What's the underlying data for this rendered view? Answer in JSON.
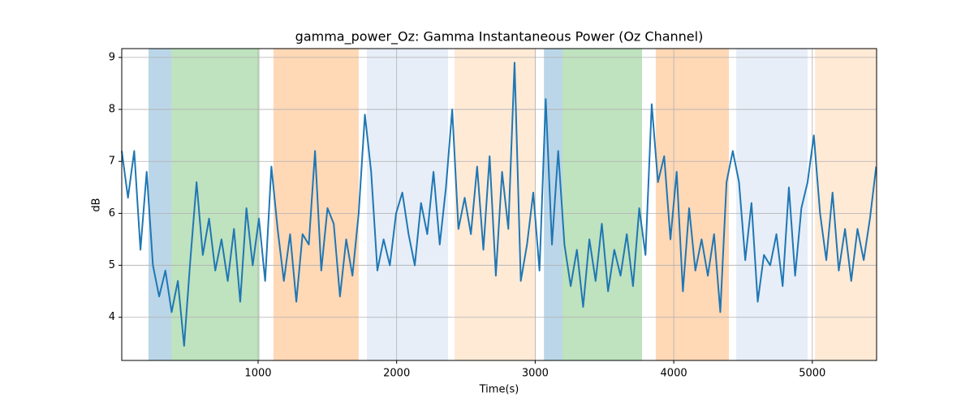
{
  "chart_data": {
    "type": "line",
    "title": "gamma_power_Oz: Gamma Instantaneous Power (Oz Channel)",
    "x_label": "Time(s)",
    "y_label": "dB",
    "xlim": [
      16,
      5464
    ],
    "ylim": [
      3.17,
      9.17
    ],
    "xticks": [
      1000,
      2000,
      3000,
      4000,
      5000
    ],
    "yticks": [
      4,
      5,
      6,
      7,
      8,
      9
    ],
    "grid": true,
    "span_opacity": 0.3,
    "spans": [
      {
        "start": 209,
        "end": 373,
        "color": "#1f77b4"
      },
      {
        "start": 373,
        "end": 1011,
        "color": "#2ca02c"
      },
      {
        "start": 1111,
        "end": 1726,
        "color": "#ff7f0e"
      },
      {
        "start": 1785,
        "end": 2371,
        "color": "#aec7e8"
      },
      {
        "start": 2418,
        "end": 3004,
        "color": "#ffbb78"
      },
      {
        "start": 3063,
        "end": 3197,
        "color": "#1f77b4"
      },
      {
        "start": 3197,
        "end": 3771,
        "color": "#2ca02c"
      },
      {
        "start": 3870,
        "end": 4398,
        "color": "#ff7f0e"
      },
      {
        "start": 4451,
        "end": 4966,
        "color": "#aec7e8"
      },
      {
        "start": 5019,
        "end": 5464,
        "color": "#ffbb78"
      }
    ],
    "x": [
      16,
      61,
      106,
      151,
      196,
      241,
      286,
      331,
      376,
      421,
      466,
      511,
      556,
      601,
      646,
      691,
      736,
      781,
      826,
      871,
      916,
      961,
      1006,
      1051,
      1096,
      1141,
      1186,
      1231,
      1276,
      1321,
      1366,
      1411,
      1456,
      1501,
      1546,
      1591,
      1636,
      1681,
      1726,
      1771,
      1816,
      1861,
      1906,
      1951,
      1996,
      2041,
      2086,
      2131,
      2176,
      2221,
      2266,
      2311,
      2356,
      2401,
      2446,
      2491,
      2536,
      2581,
      2626,
      2671,
      2716,
      2761,
      2806,
      2851,
      2896,
      2941,
      2986,
      3031,
      3076,
      3121,
      3166,
      3211,
      3256,
      3301,
      3346,
      3391,
      3436,
      3481,
      3526,
      3571,
      3616,
      3661,
      3706,
      3751,
      3796,
      3841,
      3886,
      3931,
      3976,
      4021,
      4066,
      4111,
      4156,
      4201,
      4246,
      4291,
      4336,
      4381,
      4426,
      4471,
      4516,
      4561,
      4606,
      4651,
      4696,
      4741,
      4786,
      4831,
      4876,
      4921,
      4966,
      5011,
      5056,
      5101,
      5146,
      5191,
      5236,
      5281,
      5326,
      5371,
      5416,
      5461
    ],
    "series": [
      {
        "color": "#1f77b4",
        "values": [
          7.2,
          6.3,
          7.2,
          5.3,
          6.8,
          5.0,
          4.4,
          4.9,
          4.1,
          4.7,
          3.45,
          5.1,
          6.6,
          5.2,
          5.9,
          4.9,
          5.5,
          4.7,
          5.7,
          4.3,
          6.1,
          5.0,
          5.9,
          4.7,
          6.9,
          5.7,
          4.7,
          5.6,
          4.3,
          5.6,
          5.4,
          7.2,
          4.9,
          6.1,
          5.8,
          4.4,
          5.5,
          4.8,
          6.0,
          7.9,
          6.8,
          4.9,
          5.5,
          5.0,
          6.0,
          6.4,
          5.6,
          5.0,
          6.2,
          5.6,
          6.8,
          5.4,
          6.5,
          8.0,
          5.7,
          6.3,
          5.6,
          6.9,
          5.3,
          7.1,
          4.8,
          6.8,
          5.7,
          8.9,
          4.7,
          5.4,
          6.4,
          4.9,
          8.2,
          5.4,
          7.2,
          5.4,
          4.6,
          5.3,
          4.2,
          5.5,
          4.7,
          5.8,
          4.5,
          5.3,
          4.8,
          5.6,
          4.6,
          6.1,
          5.2,
          8.1,
          6.6,
          7.1,
          5.5,
          6.8,
          4.5,
          6.1,
          4.9,
          5.5,
          4.8,
          5.6,
          4.1,
          6.6,
          7.2,
          6.6,
          5.1,
          6.2,
          4.3,
          5.2,
          5.0,
          5.6,
          4.6,
          6.5,
          4.8,
          6.1,
          6.6,
          7.5,
          6.0,
          5.1,
          6.4,
          4.9,
          5.7,
          4.7,
          5.7,
          5.1,
          5.9,
          6.9
        ]
      }
    ]
  }
}
